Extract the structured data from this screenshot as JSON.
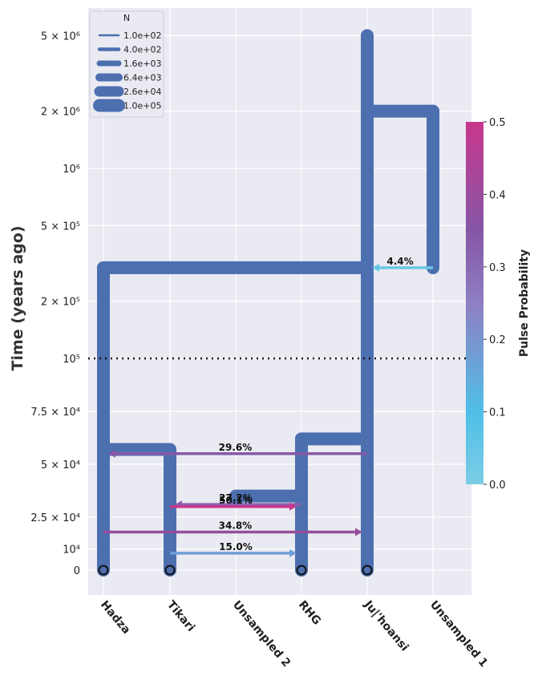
{
  "chart_data": {
    "type": "demography",
    "ylabel": "Time (years ago)",
    "y_ticks": [
      {
        "value": 0,
        "label": "0"
      },
      {
        "value": 10000,
        "label": "10⁴"
      },
      {
        "value": 25000,
        "label": "2.5 × 10⁴"
      },
      {
        "value": 50000,
        "label": "5 × 10⁴"
      },
      {
        "value": 75000,
        "label": "7.5 × 10⁴"
      },
      {
        "value": 100000,
        "label": "10⁵"
      },
      {
        "value": 200000,
        "label": "2 × 10⁵"
      },
      {
        "value": 500000,
        "label": "5 × 10⁵"
      },
      {
        "value": 1000000,
        "label": "10⁶"
      },
      {
        "value": 2000000,
        "label": "2 × 10⁶"
      },
      {
        "value": 5000000,
        "label": "5 × 10⁶"
      }
    ],
    "scale_note": "linear below 10⁵, log above",
    "threshold_line": 100000,
    "populations": [
      "Hadza",
      "Tikari",
      "Unsampled 2",
      "RHG",
      "Ju|'hoansi",
      "Unsampled 1"
    ],
    "legend": {
      "title": "N",
      "entries": [
        "1.0e+02",
        "4.0e+02",
        "1.6e+03",
        "6.4e+03",
        "2.6e+04",
        "1.0e+05"
      ]
    },
    "branches": [
      {
        "population": "Hadza",
        "start": 0,
        "end": 300000
      },
      {
        "population": "Tikari",
        "start": 0,
        "end": 57000
      },
      {
        "population": "Unsampled 2",
        "start": 33000,
        "end": 35000
      },
      {
        "population": "RHG",
        "start": 0,
        "end": 62000
      },
      {
        "population": "Ju|'hoansi",
        "start": 0,
        "end": 5000000
      },
      {
        "population": "Unsampled 1",
        "start": 300000,
        "end": 2000000
      }
    ],
    "splits": [
      {
        "from": "Hadza",
        "to": "Tikari",
        "time": 57000
      },
      {
        "from": "Unsampled 2",
        "to": "RHG",
        "time": 35000
      },
      {
        "from": "RHG",
        "to": "Ju|'hoansi",
        "time": 62000
      },
      {
        "from": "Hadza",
        "to": "Ju|'hoansi",
        "time": 300000
      },
      {
        "from": "Ju|'hoansi",
        "to": "Unsampled 1",
        "time": 2000000
      }
    ],
    "pulses": [
      {
        "source": "Unsampled 1",
        "dest": "Ju|'hoansi",
        "time": 300000,
        "proportion": 0.044,
        "label": "4.4%"
      },
      {
        "source": "Ju|'hoansi",
        "dest": "Hadza",
        "time": 55000,
        "proportion": 0.296,
        "label": "29.6%"
      },
      {
        "source": "RHG",
        "dest": "Tikari",
        "time": 31000,
        "proportion": 0.272,
        "label": "27.2%"
      },
      {
        "source": "Tikari",
        "dest": "RHG",
        "time": 30000,
        "proportion": 0.501,
        "label": "50.1%"
      },
      {
        "source": "Hadza",
        "dest": "Ju|'hoansi",
        "time": 18000,
        "proportion": 0.348,
        "label": "34.8%"
      },
      {
        "source": "Tikari",
        "dest": "RHG",
        "time": 8000,
        "proportion": 0.15,
        "label": "15.0%"
      }
    ],
    "colorbar": {
      "label": "Pulse Probability",
      "min": 0.0,
      "max": 0.5,
      "ticks": [
        "0.0",
        "0.1",
        "0.2",
        "0.3",
        "0.4",
        "0.5"
      ],
      "colors": [
        "#7ccde5",
        "#4fbfe8",
        "#8e7fc2",
        "#8656a6",
        "#a6468f",
        "#c8378d"
      ]
    },
    "branch_color": "#4c6fb0",
    "background": "#eaeaf2",
    "grid": true
  }
}
